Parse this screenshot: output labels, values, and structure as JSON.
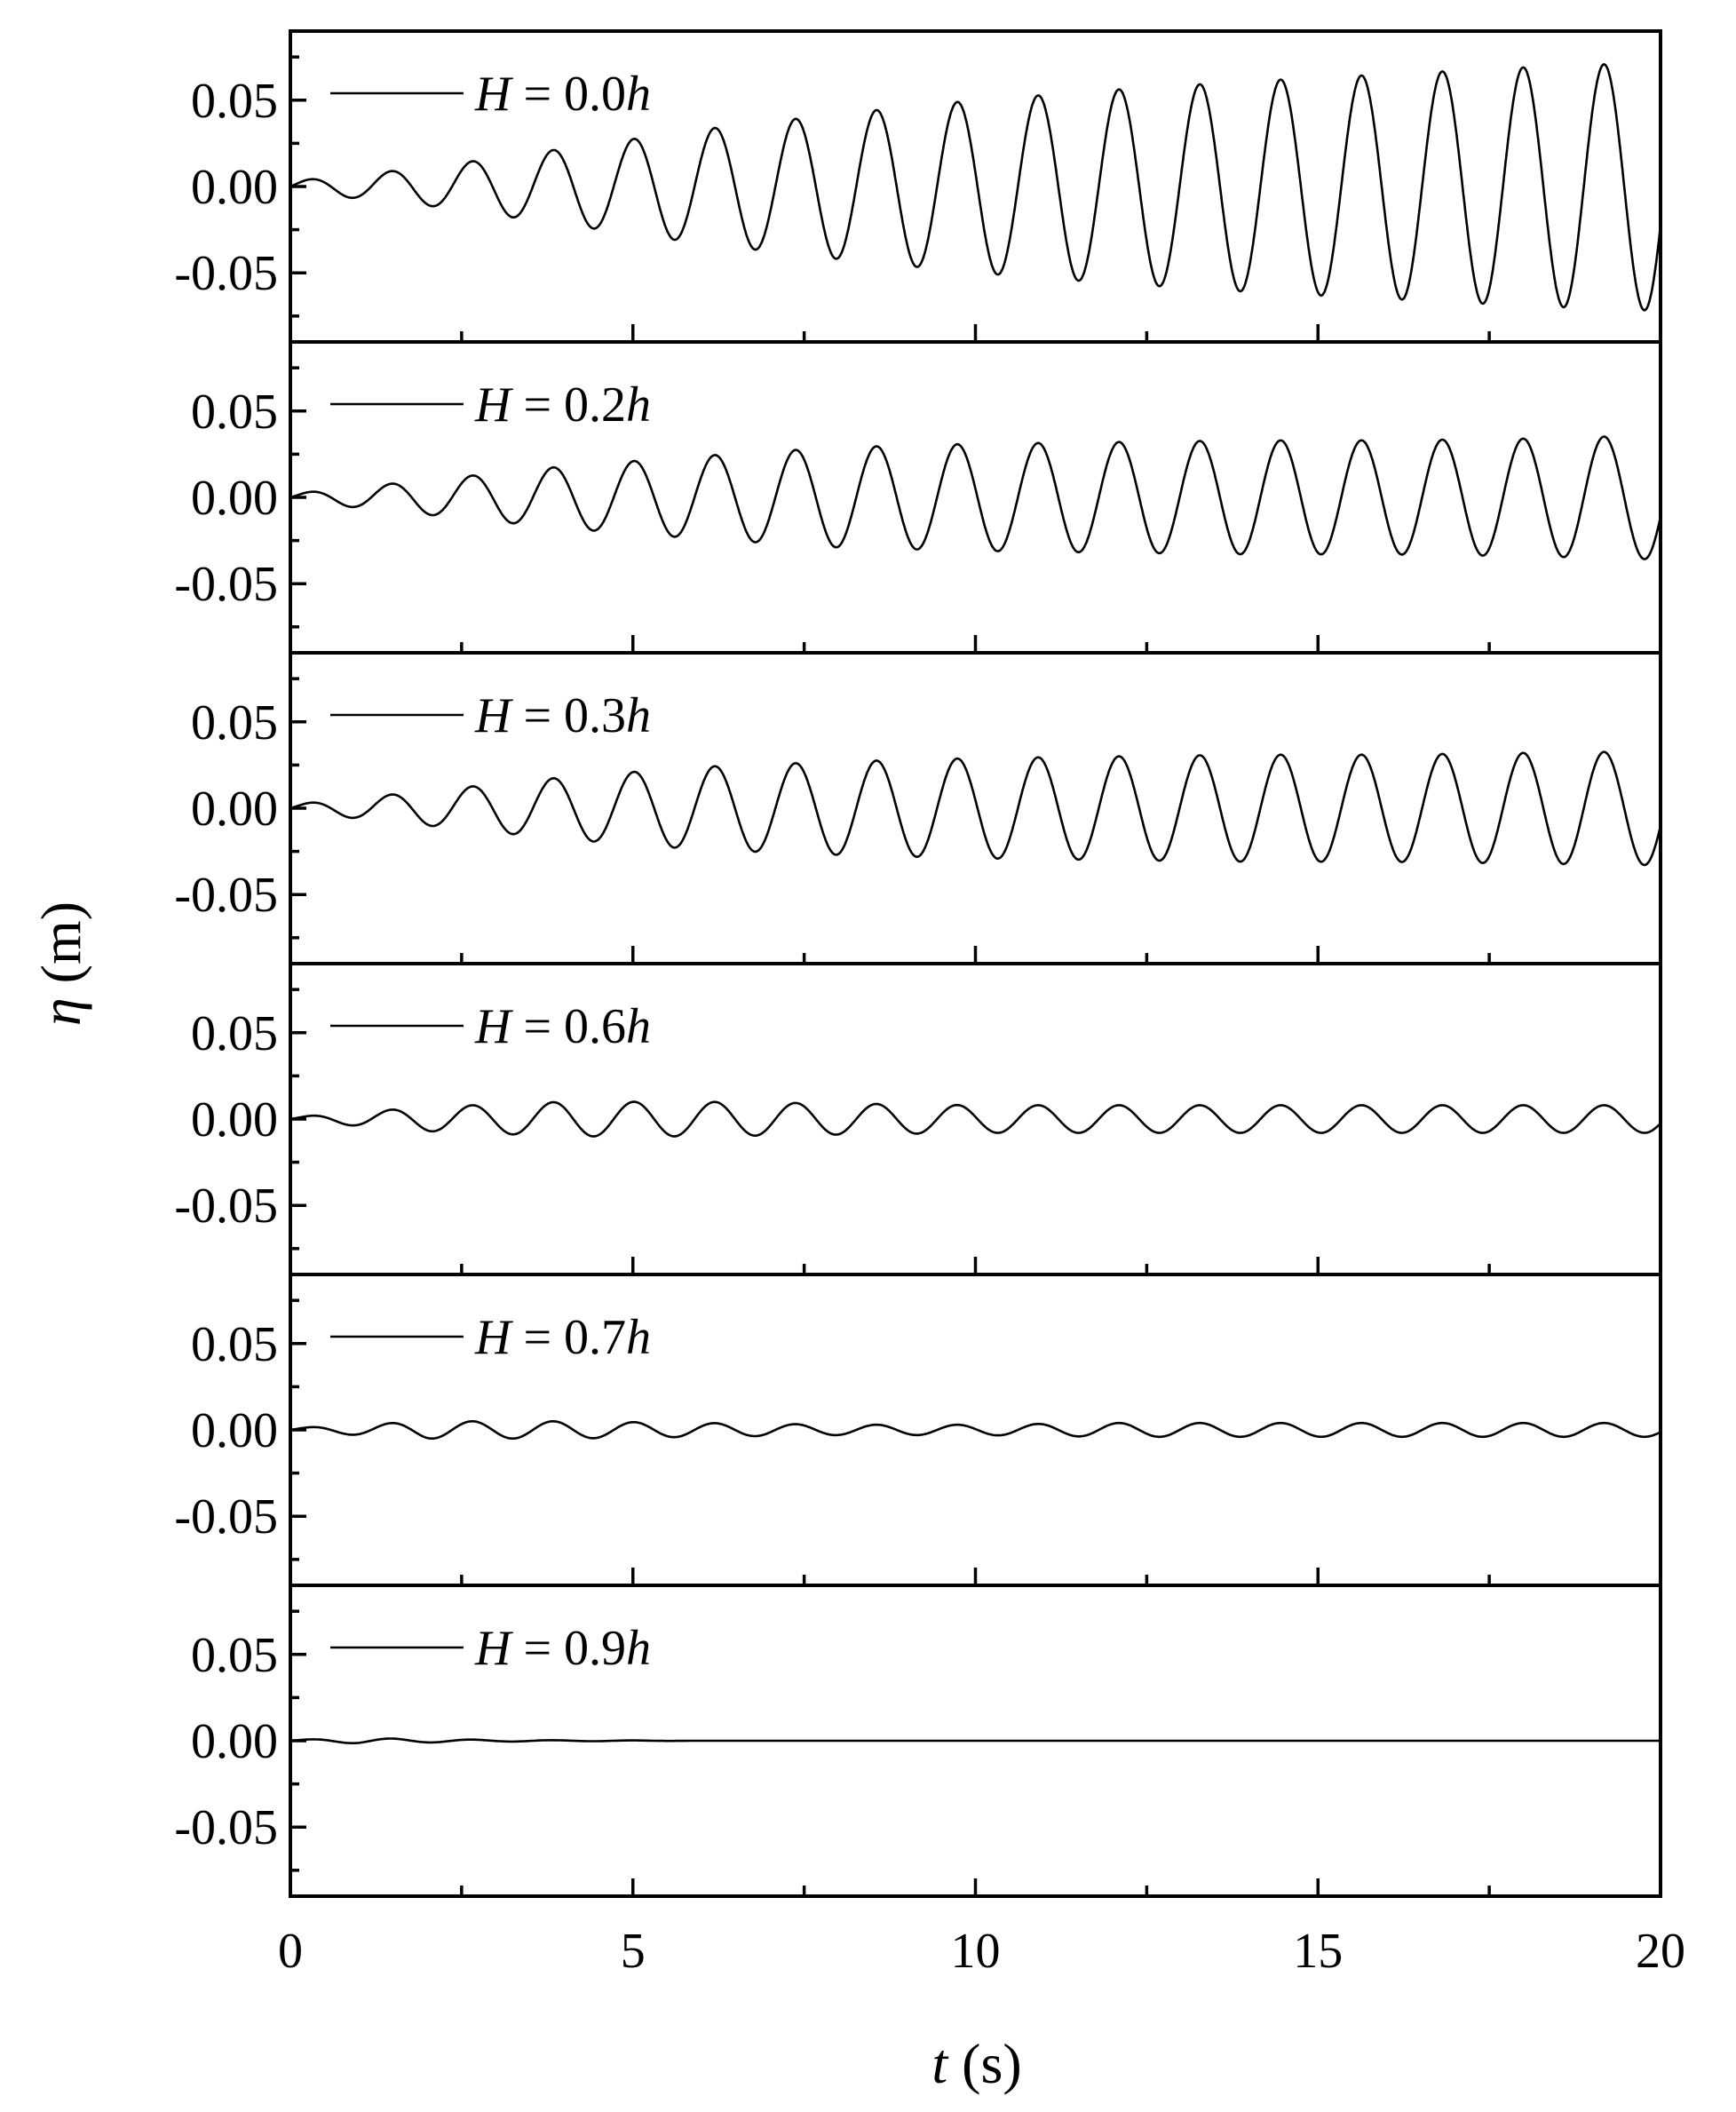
{
  "chart_data": {
    "type": "line",
    "xlabel": "t (s)",
    "xlabel_var": "t",
    "xlabel_unit": " (s)",
    "ylabel": "η (m)",
    "ylabel_var": "η",
    "ylabel_unit": " (m)",
    "xlim": [
      0,
      20
    ],
    "ylim": [
      -0.09,
      0.09
    ],
    "x_ticks": [
      0,
      5,
      10,
      15,
      20
    ],
    "x_tick_labels": [
      "0",
      "5",
      "10",
      "15",
      "20"
    ],
    "y_ticks": [
      0.05,
      0.0,
      -0.05
    ],
    "y_tick_labels": [
      "0.05",
      "0.00",
      "-0.05"
    ],
    "grid": false,
    "legend_placement": "top-left",
    "wave_period_s": 1.18,
    "panels": [
      {
        "legend_var": "H",
        "legend_eq": " = 0.",
        "legend_num": "0",
        "legend_h": "h",
        "series_name": "H = 0.0h",
        "envelope": {
          "t": [
            0,
            2,
            4,
            6,
            8,
            10,
            12,
            14,
            16,
            18,
            20
          ],
          "amp": [
            0.003,
            0.011,
            0.022,
            0.033,
            0.042,
            0.05,
            0.056,
            0.061,
            0.065,
            0.069,
            0.072
          ]
        }
      },
      {
        "legend_var": "H",
        "legend_eq": " = 0.",
        "legend_num": "2",
        "legend_h": "h",
        "series_name": "H = 0.2h",
        "envelope": {
          "t": [
            0,
            2,
            4,
            6,
            8,
            10,
            12,
            14,
            16,
            18,
            20
          ],
          "amp": [
            0.002,
            0.01,
            0.018,
            0.024,
            0.029,
            0.031,
            0.032,
            0.033,
            0.033,
            0.034,
            0.036
          ]
        }
      },
      {
        "legend_var": "H",
        "legend_eq": " = 0.",
        "legend_num": "3",
        "legend_h": "h",
        "series_name": "H = 0.3h",
        "envelope": {
          "t": [
            0,
            2,
            4,
            6,
            8,
            10,
            12,
            14,
            16,
            18,
            20
          ],
          "amp": [
            0.002,
            0.01,
            0.018,
            0.024,
            0.027,
            0.029,
            0.03,
            0.031,
            0.031,
            0.032,
            0.033
          ]
        }
      },
      {
        "legend_var": "H",
        "legend_eq": " = 0.",
        "legend_num": "6",
        "legend_h": "h",
        "series_name": "H = 0.6h",
        "envelope": {
          "t": [
            0,
            2,
            4,
            6,
            8,
            10,
            12,
            14,
            16,
            18,
            20
          ],
          "amp": [
            0.001,
            0.007,
            0.01,
            0.01,
            0.009,
            0.008,
            0.008,
            0.008,
            0.008,
            0.008,
            0.008
          ]
        }
      },
      {
        "legend_var": "H",
        "legend_eq": " = 0.",
        "legend_num": "7",
        "legend_h": "h",
        "series_name": "H = 0.7h",
        "envelope": {
          "t": [
            0,
            2,
            4,
            6,
            8,
            10,
            12,
            14,
            16,
            18,
            20
          ],
          "amp": [
            0.001,
            0.005,
            0.005,
            0.004,
            0.003,
            0.003,
            0.004,
            0.004,
            0.004,
            0.004,
            0.004
          ]
        }
      },
      {
        "legend_var": "H",
        "legend_eq": " = 0.",
        "legend_num": "9",
        "legend_h": "h",
        "series_name": "H = 0.9h",
        "envelope": {
          "t": [
            0,
            1,
            2,
            3,
            4,
            5,
            6,
            20
          ],
          "amp": [
            0.0005,
            0.0015,
            0.001,
            0.0005,
            0.0003,
            0.0002,
            0.0,
            0.0
          ]
        }
      }
    ]
  }
}
